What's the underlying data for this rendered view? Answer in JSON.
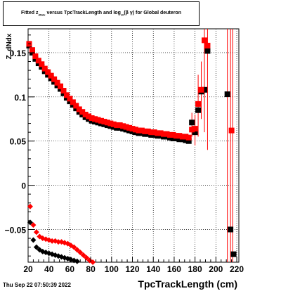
{
  "title": {
    "prefix": "Fitted  z",
    "sub1": "dNdx",
    "middle": "  versus TpcTrackLength and log",
    "sub2": "10",
    "suffix": "(β γ) for Global deuteron"
  },
  "footer": {
    "timestamp": "Thu Sep 22 07:50:39 2022"
  },
  "colors": {
    "series1": "#000000",
    "series2": "#ff0000",
    "grid": "#000000"
  },
  "chart_data": {
    "type": "scatter",
    "title": "Fitted z_dNdx versus TpcTrackLength and log_10(β γ) for Global deuteron",
    "xlabel": "TpcTrackLength (cm)",
    "ylabel": "Z_dNdx",
    "xlim": [
      20,
      222
    ],
    "ylim": [
      -0.087,
      0.177
    ],
    "xticks": [
      20,
      40,
      60,
      80,
      100,
      120,
      140,
      160,
      180,
      200,
      220
    ],
    "xtick_labels": [
      "20",
      "40",
      "60",
      "80",
      "100",
      "120",
      "140",
      "160",
      "180",
      "200",
      "220"
    ],
    "yticks": [
      -0.05,
      0,
      0.05,
      0.1,
      0.15
    ],
    "ytick_labels": [
      "−0.05",
      "0",
      "0.05",
      "0.1",
      "0.15"
    ],
    "grid": true,
    "series": [
      {
        "marker": "square",
        "points": [
          [
            21,
            0.158
          ],
          [
            24,
            0.15
          ],
          [
            27,
            0.143
          ],
          [
            30,
            0.138
          ],
          [
            33,
            0.134
          ],
          [
            36,
            0.129
          ],
          [
            39,
            0.125
          ],
          [
            42,
            0.121
          ],
          [
            45,
            0.117
          ],
          [
            48,
            0.113
          ],
          [
            51,
            0.109
          ],
          [
            54,
            0.104
          ],
          [
            57,
            0.099
          ],
          [
            60,
            0.095
          ],
          [
            63,
            0.091
          ],
          [
            66,
            0.087
          ],
          [
            69,
            0.083
          ],
          [
            72,
            0.08
          ],
          [
            75,
            0.077
          ],
          [
            78,
            0.075
          ],
          [
            81,
            0.073
          ],
          [
            84,
            0.072
          ],
          [
            87,
            0.071
          ],
          [
            90,
            0.07
          ],
          [
            93,
            0.069
          ],
          [
            96,
            0.068
          ],
          [
            99,
            0.067
          ],
          [
            102,
            0.066
          ],
          [
            105,
            0.065
          ],
          [
            108,
            0.065
          ],
          [
            111,
            0.064
          ],
          [
            114,
            0.063
          ],
          [
            117,
            0.062
          ],
          [
            120,
            0.061
          ],
          [
            123,
            0.06
          ],
          [
            126,
            0.059
          ],
          [
            129,
            0.059
          ],
          [
            132,
            0.058
          ],
          [
            135,
            0.058
          ],
          [
            138,
            0.057
          ],
          [
            141,
            0.057
          ],
          [
            144,
            0.056
          ],
          [
            147,
            0.056
          ],
          [
            150,
            0.055
          ],
          [
            153,
            0.055
          ],
          [
            156,
            0.054
          ],
          [
            159,
            0.053
          ],
          [
            162,
            0.053
          ],
          [
            165,
            0.052
          ],
          [
            168,
            0.052
          ],
          [
            171,
            0.051
          ],
          [
            174,
            0.05
          ],
          [
            177,
            0.071
          ],
          [
            180,
            0.06
          ],
          [
            183,
            0.085
          ],
          [
            186,
            0.106
          ],
          [
            189,
            0.108
          ],
          [
            192,
            0.152
          ],
          [
            211,
            0.103
          ],
          [
            214,
            -0.05
          ],
          [
            217,
            -0.078
          ]
        ]
      },
      {
        "marker": "square",
        "points": [
          [
            21,
            0.16
          ],
          [
            24,
            0.153
          ],
          [
            27,
            0.146
          ],
          [
            30,
            0.141
          ],
          [
            33,
            0.137
          ],
          [
            36,
            0.132
          ],
          [
            39,
            0.128
          ],
          [
            42,
            0.124
          ],
          [
            45,
            0.12
          ],
          [
            48,
            0.116
          ],
          [
            51,
            0.112
          ],
          [
            54,
            0.107
          ],
          [
            57,
            0.102
          ],
          [
            60,
            0.098
          ],
          [
            63,
            0.094
          ],
          [
            66,
            0.09
          ],
          [
            69,
            0.086
          ],
          [
            72,
            0.083
          ],
          [
            75,
            0.08
          ],
          [
            78,
            0.078
          ],
          [
            81,
            0.076
          ],
          [
            84,
            0.075
          ],
          [
            87,
            0.074
          ],
          [
            90,
            0.073
          ],
          [
            93,
            0.072
          ],
          [
            96,
            0.071
          ],
          [
            99,
            0.07
          ],
          [
            102,
            0.069
          ],
          [
            105,
            0.068
          ],
          [
            108,
            0.068
          ],
          [
            111,
            0.067
          ],
          [
            114,
            0.066
          ],
          [
            117,
            0.065
          ],
          [
            120,
            0.064
          ],
          [
            123,
            0.063
          ],
          [
            126,
            0.062
          ],
          [
            129,
            0.062
          ],
          [
            132,
            0.061
          ],
          [
            135,
            0.061
          ],
          [
            138,
            0.06
          ],
          [
            141,
            0.06
          ],
          [
            144,
            0.059
          ],
          [
            147,
            0.059
          ],
          [
            150,
            0.058
          ],
          [
            153,
            0.058
          ],
          [
            156,
            0.057
          ],
          [
            159,
            0.057
          ],
          [
            162,
            0.056
          ],
          [
            165,
            0.056
          ],
          [
            168,
            0.055
          ],
          [
            171,
            0.055
          ],
          [
            174,
            0.054
          ],
          [
            177,
            0.063
          ],
          [
            180,
            0.064
          ],
          [
            183,
            0.092
          ],
          [
            186,
            0.108
          ],
          [
            189,
            0.164
          ],
          [
            192,
            0.158
          ],
          [
            215,
            0.062
          ]
        ]
      },
      {
        "marker": "diamond",
        "points": [
          [
            22,
            -0.042
          ],
          [
            25,
            -0.062
          ],
          [
            28,
            -0.07
          ],
          [
            31,
            -0.073
          ],
          [
            34,
            -0.075
          ],
          [
            37,
            -0.076
          ],
          [
            40,
            -0.077
          ],
          [
            43,
            -0.078
          ],
          [
            46,
            -0.079
          ],
          [
            49,
            -0.08
          ],
          [
            52,
            -0.081
          ],
          [
            55,
            -0.082
          ],
          [
            58,
            -0.083
          ],
          [
            61,
            -0.084
          ],
          [
            64,
            -0.085
          ],
          [
            67,
            -0.086
          ]
        ]
      },
      {
        "marker": "diamond",
        "points": [
          [
            22,
            -0.024
          ],
          [
            25,
            -0.045
          ],
          [
            28,
            -0.053
          ],
          [
            31,
            -0.058
          ],
          [
            34,
            -0.06
          ],
          [
            37,
            -0.061
          ],
          [
            40,
            -0.062
          ],
          [
            43,
            -0.063
          ],
          [
            46,
            -0.063
          ],
          [
            49,
            -0.064
          ],
          [
            52,
            -0.064
          ],
          [
            55,
            -0.065
          ],
          [
            58,
            -0.066
          ],
          [
            61,
            -0.068
          ],
          [
            64,
            -0.07
          ],
          [
            67,
            -0.073
          ],
          [
            70,
            -0.076
          ],
          [
            73,
            -0.079
          ],
          [
            76,
            -0.082
          ],
          [
            79,
            -0.085
          ],
          [
            82,
            -0.087
          ]
        ]
      }
    ],
    "error_bars": [
      {
        "x": 177,
        "low": 0.055,
        "high": 0.082
      },
      {
        "x": 180,
        "low": 0.045,
        "high": 0.08
      },
      {
        "x": 183,
        "low": 0.055,
        "high": 0.125
      },
      {
        "x": 186,
        "low": 0.075,
        "high": 0.14
      },
      {
        "x": 189,
        "low": 0.06,
        "high": 0.177
      },
      {
        "x": 192,
        "low": 0.04,
        "high": 0.177
      },
      {
        "x": 211,
        "low": -0.087,
        "high": 0.177
      },
      {
        "x": 214,
        "low": -0.087,
        "high": 0.177
      },
      {
        "x": 216,
        "low": -0.087,
        "high": 0.177
      }
    ]
  }
}
